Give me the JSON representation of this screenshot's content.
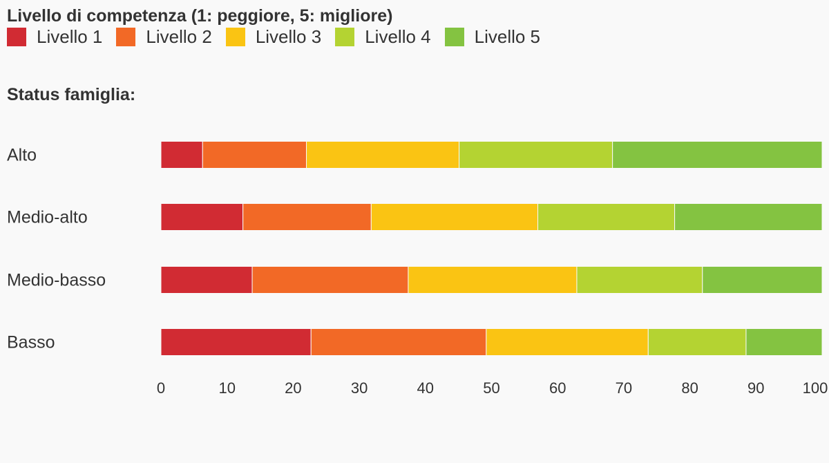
{
  "chart_data": {
    "type": "bar",
    "orientation": "horizontal",
    "stacked": true,
    "title": "Livello di competenza (1: peggiore, 5: migliore)",
    "group_label": "Status famiglia:",
    "categories": [
      "Alto",
      "Medio-alto",
      "Medio-basso",
      "Basso"
    ],
    "series": [
      {
        "name": "Livello 1",
        "color": "#d12b33",
        "values": [
          6.3,
          12.4,
          13.8,
          22.7
        ]
      },
      {
        "name": "Livello 2",
        "color": "#f26926",
        "values": [
          15.7,
          19.4,
          23.6,
          26.5
        ]
      },
      {
        "name": "Livello 3",
        "color": "#fac413",
        "values": [
          23.1,
          25.2,
          25.5,
          24.5
        ]
      },
      {
        "name": "Livello 4",
        "color": "#b4d332",
        "values": [
          23.2,
          20.7,
          19.0,
          14.8
        ]
      },
      {
        "name": "Livello 5",
        "color": "#84c341",
        "values": [
          31.7,
          22.3,
          18.1,
          11.5
        ]
      }
    ],
    "xlim": [
      0,
      100
    ],
    "xticks": [
      0,
      10,
      20,
      30,
      40,
      50,
      60,
      70,
      80,
      90,
      100
    ],
    "grid": false,
    "legend_position": "top-left"
  }
}
